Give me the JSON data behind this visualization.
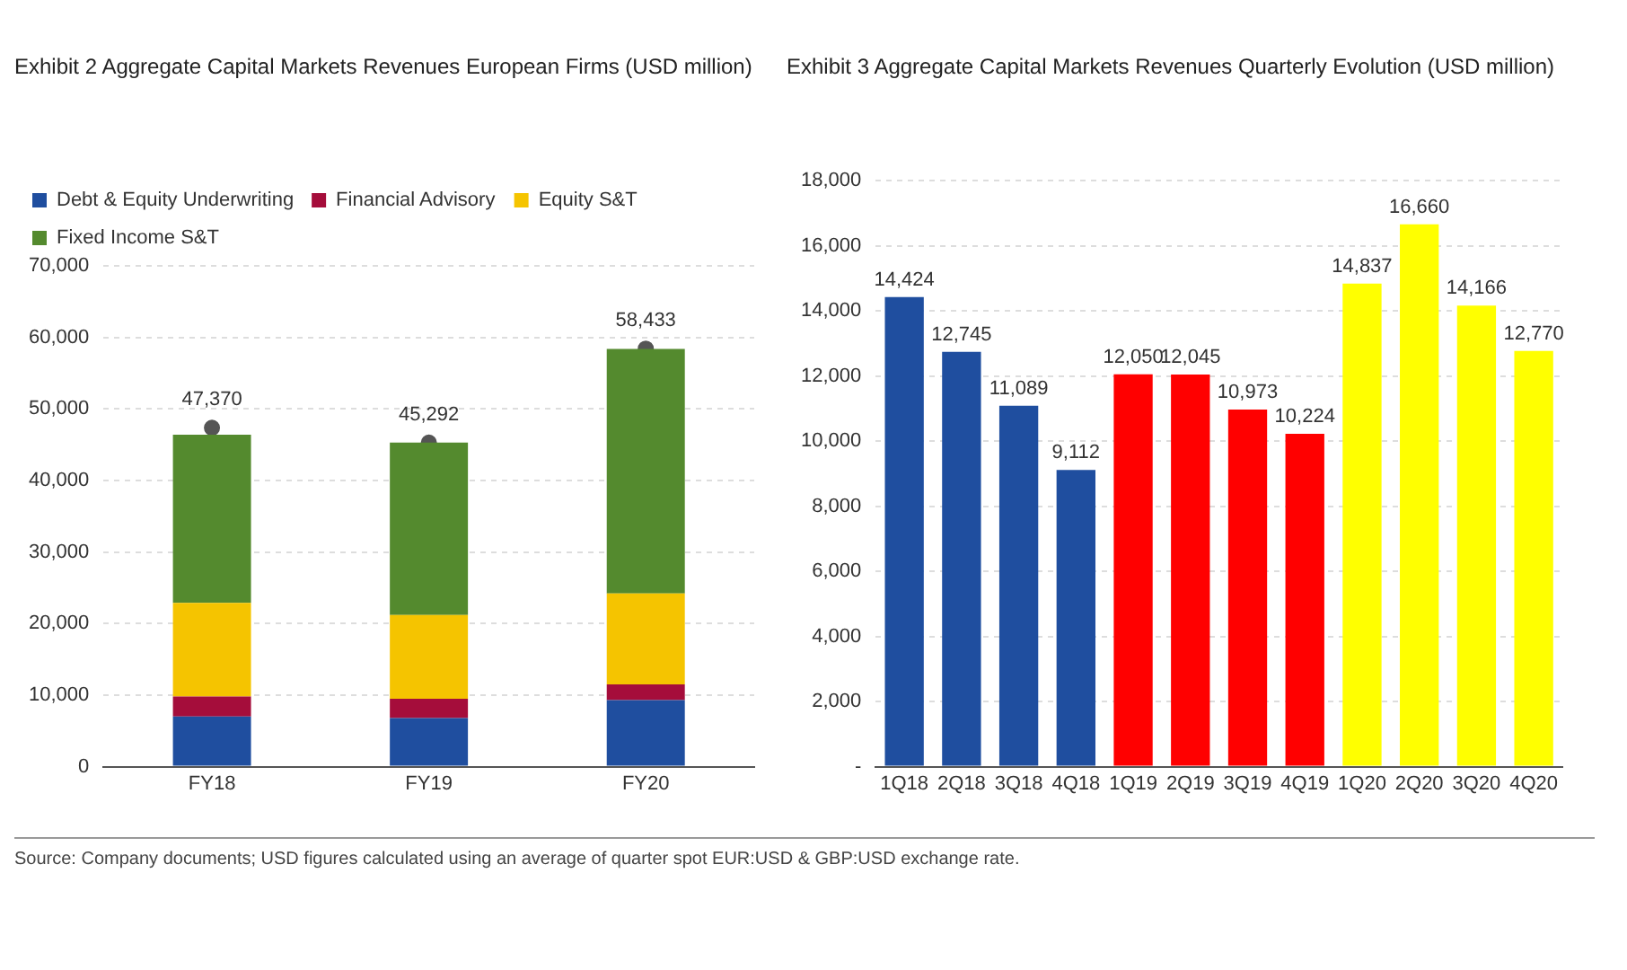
{
  "chart_data": [
    {
      "type": "bar",
      "title": "Exhibit 2  Aggregate Capital Markets Revenues European Firms (USD million)",
      "categories": [
        "FY18",
        "FY19",
        "FY20"
      ],
      "stacked": true,
      "series": [
        {
          "name": "Debt & Equity Underwriting",
          "color": "#1f4e9f",
          "values": [
            7000,
            6800,
            9300
          ]
        },
        {
          "name": "Financial Advisory",
          "color": "#a50d3b",
          "values": [
            2800,
            2700,
            2200
          ]
        },
        {
          "name": "Equity S&T",
          "color": "#f5c400",
          "values": [
            13100,
            11700,
            12700
          ]
        },
        {
          "name": "Fixed Income S&T",
          "color": "#548a2e",
          "values": [
            23500,
            24100,
            34200
          ]
        },
        {
          "type": "scatter",
          "color": "#555555",
          "marker": "circle",
          "values": [
            47370,
            45292,
            58433
          ],
          "value_labels": [
            "47,370",
            "45,292",
            "58,433"
          ]
        }
      ],
      "ylim": [
        0,
        70000
      ],
      "yticks": [
        {
          "value": 0,
          "label": "0"
        },
        {
          "value": 10000,
          "label": "10,000"
        },
        {
          "value": 20000,
          "label": "20,000"
        },
        {
          "value": 30000,
          "label": "30,000"
        },
        {
          "value": 40000,
          "label": "40,000"
        },
        {
          "value": 50000,
          "label": "50,000"
        },
        {
          "value": 60000,
          "label": "60,000"
        },
        {
          "value": 70000,
          "label": "70,000"
        }
      ],
      "grid": "y",
      "legend": "top left"
    },
    {
      "type": "bar",
      "title": "Exhibit 3  Aggregate Capital Markets Revenues Quarterly Evolution (USD million)",
      "categories": [
        "1Q18",
        "2Q18",
        "3Q18",
        "4Q18",
        "1Q19",
        "2Q19",
        "3Q19",
        "4Q19",
        "1Q20",
        "2Q20",
        "3Q20",
        "4Q20"
      ],
      "values": [
        14424,
        12745,
        11089,
        9112,
        12050,
        12045,
        10973,
        10224,
        14837,
        16660,
        14166,
        12770
      ],
      "colors": [
        "#1f4e9f",
        "#1f4e9f",
        "#1f4e9f",
        "#1f4e9f",
        "#ff0000",
        "#ff0000",
        "#ff0000",
        "#ff0000",
        "#ffff00",
        "#ffff00",
        "#ffff00",
        "#ffff00"
      ],
      "value_labels": [
        "14,424",
        "12,745",
        "11,089",
        "9,112",
        "12,050",
        "12,045",
        "10,973",
        "10,224",
        "14,837",
        "16,660",
        "14,166",
        "12,770"
      ],
      "ylim": [
        0,
        18000
      ],
      "yticks": [
        {
          "value": 0,
          "label": "-"
        },
        {
          "value": 2000,
          "label": "2,000"
        },
        {
          "value": 4000,
          "label": "4,000"
        },
        {
          "value": 6000,
          "label": "6,000"
        },
        {
          "value": 8000,
          "label": "8,000"
        },
        {
          "value": 10000,
          "label": "10,000"
        },
        {
          "value": 12000,
          "label": "12,000"
        },
        {
          "value": 14000,
          "label": "14,000"
        },
        {
          "value": 16000,
          "label": "16,000"
        },
        {
          "value": 18000,
          "label": "18,000"
        }
      ],
      "grid": "y",
      "legend": false,
      "annotations": [
        "Source: Company documents; USD figures calculated using an average of quarter spot EUR:USD & GBP:USD exchange rate."
      ]
    }
  ]
}
